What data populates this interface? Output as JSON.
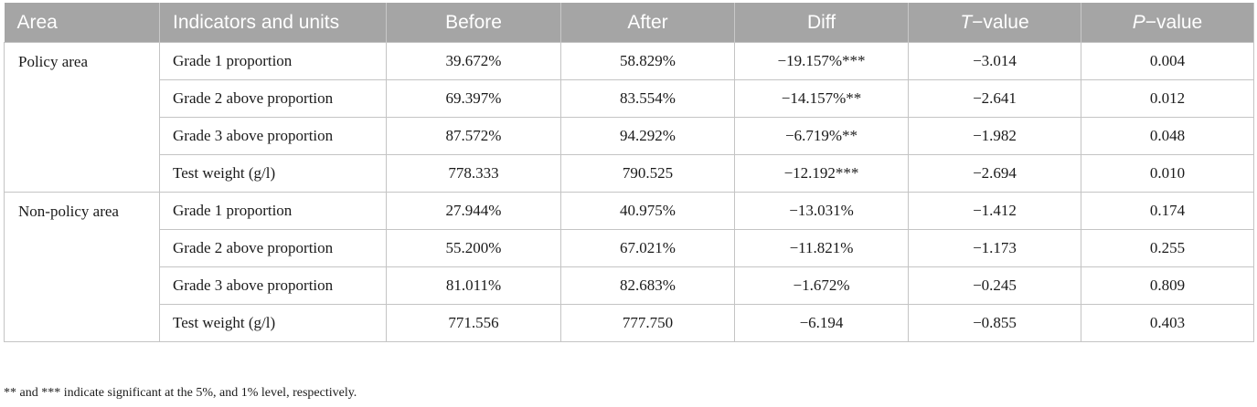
{
  "header": {
    "area": "Area",
    "indicators": "Indicators and units",
    "before": "Before",
    "after": "After",
    "diff": "Diff",
    "t_italic": "T",
    "t_rest": "−value",
    "p_italic": "P",
    "p_rest": "−value"
  },
  "groups": [
    {
      "area": "Policy area",
      "rows": [
        {
          "indicator": "Grade 1 proportion",
          "before": "39.672%",
          "after": "58.829%",
          "diff": "−19.157%***",
          "t": "−3.014",
          "p": "0.004"
        },
        {
          "indicator": "Grade 2 above proportion",
          "before": "69.397%",
          "after": "83.554%",
          "diff": "−14.157%**",
          "t": "−2.641",
          "p": "0.012"
        },
        {
          "indicator": "Grade 3 above proportion",
          "before": "87.572%",
          "after": "94.292%",
          "diff": "−6.719%**",
          "t": "−1.982",
          "p": "0.048"
        },
        {
          "indicator": "Test weight (g/l)",
          "before": "778.333",
          "after": "790.525",
          "diff": "−12.192***",
          "t": "−2.694",
          "p": "0.010"
        }
      ]
    },
    {
      "area": "Non-policy area",
      "rows": [
        {
          "indicator": "Grade 1 proportion",
          "before": "27.944%",
          "after": "40.975%",
          "diff": "−13.031%",
          "t": "−1.412",
          "p": "0.174"
        },
        {
          "indicator": "Grade 2 above proportion",
          "before": "55.200%",
          "after": "67.021%",
          "diff": "−11.821%",
          "t": "−1.173",
          "p": "0.255"
        },
        {
          "indicator": "Grade 3 above proportion",
          "before": "81.011%",
          "after": "82.683%",
          "diff": "−1.672%",
          "t": "−0.245",
          "p": "0.809"
        },
        {
          "indicator": "Test weight (g/l)",
          "before": "771.556",
          "after": "777.750",
          "diff": "−6.194",
          "t": "−0.855",
          "p": "0.403"
        }
      ]
    }
  ],
  "footnote": "** and *** indicate significant at the 5%, and 1% level, respectively.",
  "colors": {
    "header_bg": "#a5a5a5",
    "header_text": "#ffffff",
    "border": "#c4c4c4"
  }
}
